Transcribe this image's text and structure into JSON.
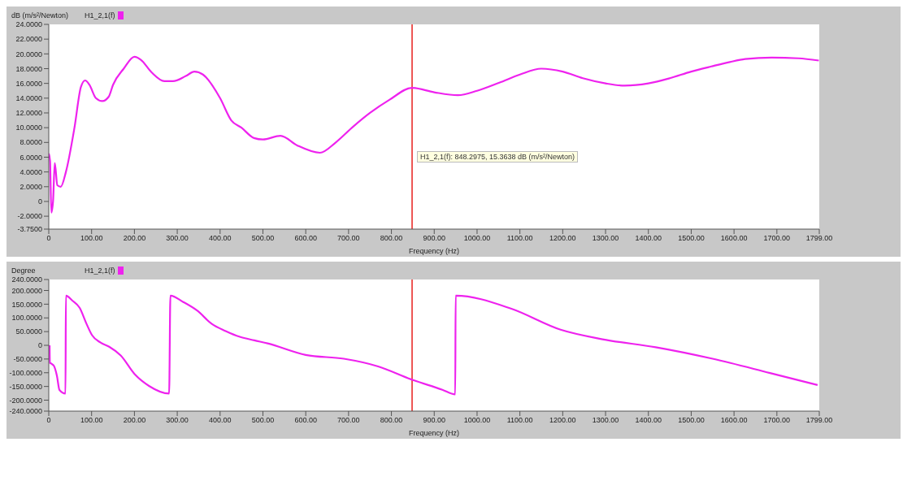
{
  "chart_data": [
    {
      "type": "line",
      "ylabel": "dB (m/s²/Newton)",
      "xlabel": "Frequency (Hz)",
      "legend": "top left",
      "grid": false,
      "marker": "none",
      "line_style": "solid",
      "xlim": [
        0,
        1799
      ],
      "xticks": [
        0,
        {
          "value": 100,
          "label": "100.00"
        },
        {
          "value": 200,
          "label": "200.00"
        },
        {
          "value": 300,
          "label": "300.00"
        },
        {
          "value": 400,
          "label": "400.00"
        },
        {
          "value": 500,
          "label": "500.00"
        },
        {
          "value": 600,
          "label": "600.00"
        },
        {
          "value": 700,
          "label": "700.00"
        },
        {
          "value": 800,
          "label": "800.00"
        },
        {
          "value": 900,
          "label": "900.00"
        },
        {
          "value": 1000,
          "label": "1000.00"
        },
        {
          "value": 1100,
          "label": "1100.00"
        },
        {
          "value": 1200,
          "label": "1200.00"
        },
        {
          "value": 1300,
          "label": "1300.00"
        },
        {
          "value": 1400,
          "label": "1400.00"
        },
        {
          "value": 1500,
          "label": "1500.00"
        },
        {
          "value": 1600,
          "label": "1600.00"
        },
        {
          "value": 1700,
          "label": "1700.00"
        },
        {
          "value": 1799,
          "label": "1799.00"
        }
      ],
      "ylim": [
        -3.75,
        24
      ],
      "yticks": [
        {
          "value": -3.75,
          "label": "-3.7500"
        },
        {
          "value": -2,
          "label": "-2.0000"
        },
        0,
        {
          "value": 2,
          "label": "2.0000"
        },
        {
          "value": 4,
          "label": "4.0000"
        },
        {
          "value": 6,
          "label": "6.0000"
        },
        {
          "value": 8,
          "label": "8.0000"
        },
        {
          "value": 10,
          "label": "10.0000"
        },
        {
          "value": 12,
          "label": "12.0000"
        },
        {
          "value": 14,
          "label": "14.0000"
        },
        {
          "value": 16,
          "label": "16.0000"
        },
        {
          "value": 18,
          "label": "18.0000"
        },
        {
          "value": 20,
          "label": "20.0000"
        },
        {
          "value": 22,
          "label": "22.0000"
        },
        {
          "value": 24,
          "label": "24.0000"
        }
      ],
      "ref_lines": [
        {
          "axis": "x",
          "value": 848.2975,
          "color": "#e8201c"
        }
      ],
      "annotations": [
        "H1_2,1(f): 848.2975, 15.3638 dB (m/s²/Newton)"
      ],
      "series": [
        {
          "name": "H1_2,1(f)",
          "color": "#ee22ee",
          "x": [
            0,
            3,
            6,
            10,
            14,
            20,
            28,
            40,
            60,
            75,
            85,
            95,
            110,
            125,
            140,
            150,
            175,
            200,
            215,
            240,
            270,
            290,
            320,
            340,
            360,
            400,
            426,
            450,
            479,
            500,
            541,
            580,
            633,
            670,
            708,
            750,
            796,
            848,
            900,
            955,
            1000,
            1052,
            1100,
            1150,
            1200,
            1247,
            1300,
            1344,
            1400,
            1450,
            1500,
            1547,
            1590,
            1626,
            1688,
            1750,
            1798
          ],
          "values": [
            6.5,
            5.5,
            -1.5,
            0,
            5.2,
            2.2,
            2,
            4,
            10,
            15.5,
            16.4,
            15.8,
            14,
            13.6,
            14.2,
            15.8,
            18,
            19.6,
            19.2,
            17.5,
            16.3,
            16.3,
            17,
            17.6,
            17.2,
            14,
            11,
            10,
            8.6,
            8.4,
            8.9,
            7.6,
            6.6,
            8,
            10,
            12,
            13.8,
            15.4,
            14.8,
            14.4,
            15,
            16.1,
            17.2,
            18,
            17.6,
            16.7,
            16,
            15.7,
            16,
            16.7,
            17.6,
            18.3,
            18.9,
            19.3,
            19.5,
            19.4,
            19.1
          ]
        }
      ]
    },
    {
      "type": "line",
      "ylabel": "Degree",
      "xlabel": "Frequency (Hz)",
      "legend": "top left",
      "grid": false,
      "marker": "none",
      "line_style": "solid",
      "xlim": [
        0,
        1799
      ],
      "xticks": [
        0,
        {
          "value": 100,
          "label": "100.00"
        },
        {
          "value": 200,
          "label": "200.00"
        },
        {
          "value": 300,
          "label": "300.00"
        },
        {
          "value": 400,
          "label": "400.00"
        },
        {
          "value": 500,
          "label": "500.00"
        },
        {
          "value": 600,
          "label": "600.00"
        },
        {
          "value": 700,
          "label": "700.00"
        },
        {
          "value": 800,
          "label": "800.00"
        },
        {
          "value": 900,
          "label": "900.00"
        },
        {
          "value": 1000,
          "label": "1000.00"
        },
        {
          "value": 1100,
          "label": "1100.00"
        },
        {
          "value": 1200,
          "label": "1200.00"
        },
        {
          "value": 1300,
          "label": "1300.00"
        },
        {
          "value": 1400,
          "label": "1400.00"
        },
        {
          "value": 1500,
          "label": "1500.00"
        },
        {
          "value": 1600,
          "label": "1600.00"
        },
        {
          "value": 1700,
          "label": "1700.00"
        },
        {
          "value": 1799,
          "label": "1799.00"
        }
      ],
      "ylim": [
        -240,
        240
      ],
      "yticks": [
        {
          "value": -240,
          "label": "-240.0000"
        },
        {
          "value": -200,
          "label": "-200.0000"
        },
        {
          "value": -150,
          "label": "-150.0000"
        },
        {
          "value": -100,
          "label": "-100.0000"
        },
        {
          "value": -50,
          "label": "-50.0000"
        },
        0,
        {
          "value": 50,
          "label": "50.0000"
        },
        {
          "value": 100,
          "label": "100.0000"
        },
        {
          "value": 150,
          "label": "150.0000"
        },
        {
          "value": 200,
          "label": "200.0000"
        },
        {
          "value": 240,
          "label": "240.0000"
        }
      ],
      "ref_lines": [
        {
          "axis": "x",
          "value": 848.2975,
          "color": "#e8201c"
        }
      ],
      "series": [
        {
          "name": "H1_2,1(f)",
          "color": "#ee22ee",
          "x": [
            2,
            2.5,
            8,
            12,
            19,
            25,
            39,
            40,
            55,
            72,
            88,
            101,
            121,
            141,
            168,
            201,
            234,
            281,
            284,
            314,
            347,
            380,
            413,
            446,
            480,
            511,
            600,
            689,
            769,
            846,
            919,
            949,
            950,
            1079,
            1195,
            1293,
            1417,
            1550,
            1684,
            1795
          ],
          "values": [
            0,
            -63,
            -69,
            -75,
            -111,
            -163,
            -176,
            181,
            163,
            137,
            79,
            37,
            10,
            -5,
            -37,
            -106,
            -148,
            -176,
            181,
            158,
            126,
            79,
            52,
            31,
            18,
            7,
            -35,
            -49,
            -77,
            -124,
            -162,
            -179,
            181,
            134,
            57,
            22,
            -7,
            -49,
            -101,
            -145
          ]
        }
      ]
    }
  ]
}
